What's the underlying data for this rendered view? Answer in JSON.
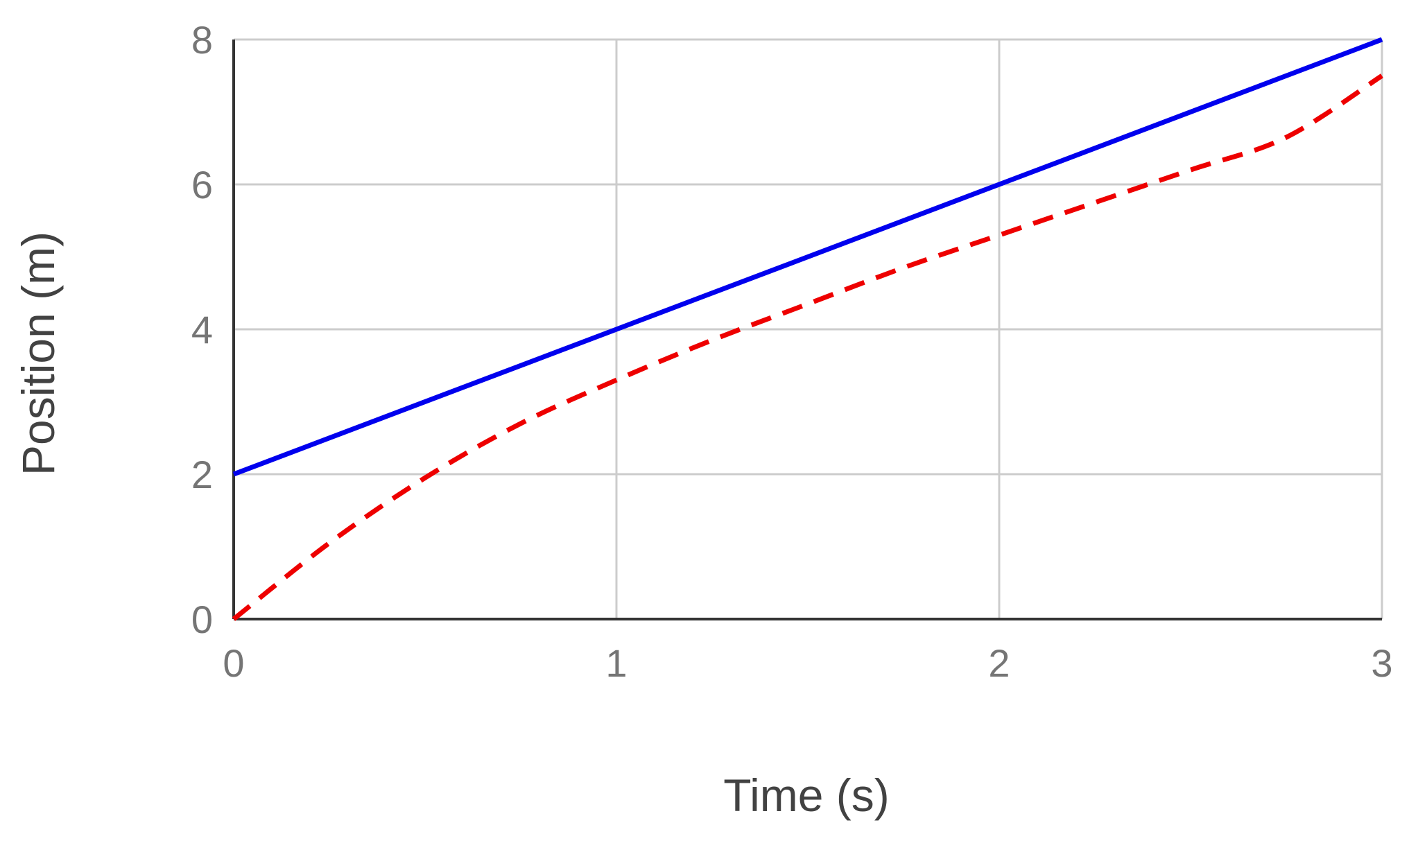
{
  "chart_data": {
    "type": "line",
    "title": "",
    "xlabel": "Time (s)",
    "ylabel": "Position (m)",
    "xlim": [
      0,
      3
    ],
    "ylim": [
      0,
      8
    ],
    "x_ticks": [
      "0",
      "1",
      "2",
      "3"
    ],
    "y_ticks": [
      "0",
      "2",
      "4",
      "6",
      "8"
    ],
    "grid": true,
    "legend": "none",
    "series": [
      {
        "color": "#0000ee",
        "style": "solid",
        "x": [
          0,
          1,
          2,
          3
        ],
        "y": [
          2,
          4,
          6,
          8
        ]
      },
      {
        "color": "#ee0000",
        "style": "dashed",
        "x": [
          0,
          0.25,
          0.5,
          0.75,
          1,
          1.25,
          1.5,
          1.75,
          2,
          2.25,
          2.5,
          2.75,
          3
        ],
        "y": [
          0,
          1.05,
          1.95,
          2.7,
          3.3,
          3.85,
          4.35,
          4.85,
          5.3,
          5.75,
          6.2,
          6.65,
          7.5
        ]
      }
    ],
    "colors": {
      "grid": "#cccccc",
      "axis": "#333333",
      "tick_text": "#757575",
      "title_text": "#424242"
    }
  }
}
